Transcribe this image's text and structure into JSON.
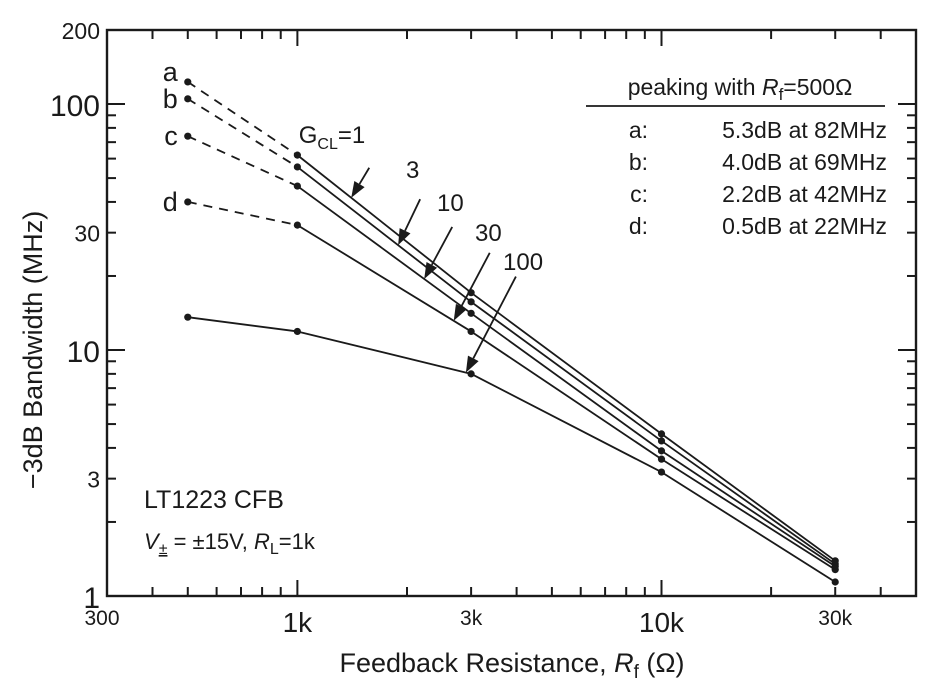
{
  "chart_data": {
    "type": "line",
    "title": "",
    "xlabel": "Feedback Resistance, R_f (Ω)",
    "xlabel_parts": {
      "main": "Feedback Resistance, ",
      "var": "R",
      "sub": "f",
      "unit": " (Ω)"
    },
    "ylabel": "−3dB Bandwidth (MHz)",
    "xscale": "log",
    "yscale": "log",
    "xlim": [
      300,
      50000
    ],
    "ylim": [
      1,
      200
    ],
    "x_ticks": [
      {
        "value": 300,
        "label": "300",
        "size": "small"
      },
      {
        "value": 1000,
        "label": "1k",
        "size": "large"
      },
      {
        "value": 3000,
        "label": "3k",
        "size": "small"
      },
      {
        "value": 10000,
        "label": "10k",
        "size": "large"
      },
      {
        "value": 30000,
        "label": "30k",
        "size": "small"
      }
    ],
    "y_ticks": [
      {
        "value": 1,
        "label": "1",
        "size": "large"
      },
      {
        "value": 3,
        "label": "3",
        "size": "small"
      },
      {
        "value": 10,
        "label": "10",
        "size": "large"
      },
      {
        "value": 30,
        "label": "30",
        "size": "small"
      },
      {
        "value": 100,
        "label": "100",
        "size": "large"
      },
      {
        "value": 200,
        "label": "200",
        "size": "small"
      }
    ],
    "grid": false,
    "series": [
      {
        "name": "G_CL=1",
        "peak_label": "a",
        "x": [
          500,
          1000,
          3000,
          10000,
          30000
        ],
        "values": [
          123,
          62,
          17.1,
          4.56,
          1.39
        ],
        "dashed_segments": [
          0
        ]
      },
      {
        "name": "G_CL=3",
        "peak_label": "b",
        "x": [
          500,
          1000,
          3000,
          10000,
          30000
        ],
        "values": [
          105,
          55.5,
          15.7,
          4.27,
          1.35
        ],
        "dashed_segments": [
          0
        ]
      },
      {
        "name": "G_CL=10",
        "peak_label": "c",
        "x": [
          500,
          1000,
          3000,
          10000,
          30000
        ],
        "values": [
          74,
          46.4,
          14.1,
          3.89,
          1.32
        ],
        "dashed_segments": [
          0
        ]
      },
      {
        "name": "G_CL=30",
        "peak_label": "d",
        "x": [
          500,
          1000,
          3000,
          10000,
          30000
        ],
        "values": [
          40,
          32.2,
          11.9,
          3.6,
          1.28
        ],
        "dashed_segments": [
          0
        ]
      },
      {
        "name": "G_CL=100",
        "peak_label": "",
        "x": [
          500,
          1000,
          3000,
          10000,
          30000
        ],
        "values": [
          13.6,
          11.9,
          8.0,
          3.19,
          1.14
        ],
        "dashed_segments": []
      }
    ],
    "gain_labels": [
      {
        "text": "G",
        "sub": "CL",
        "suffix": "=1",
        "series": 0
      },
      {
        "text": "3",
        "series": 1
      },
      {
        "text": "10",
        "series": 2
      },
      {
        "text": "30",
        "series": 3
      },
      {
        "text": "100",
        "series": 4
      }
    ],
    "peak_markers": [
      "a",
      "b",
      "c",
      "d"
    ],
    "legend": {
      "title_prefix": "peaking with ",
      "title_var": "R",
      "title_sub": "f",
      "title_suffix": "=500Ω",
      "placement": "top-right",
      "entries": [
        {
          "key": "a:",
          "text": "5.3dB at 82MHz"
        },
        {
          "key": "b:",
          "text": "4.0dB at 69MHz"
        },
        {
          "key": "c:",
          "text": "2.2dB at 42MHz"
        },
        {
          "key": "d:",
          "text": "0.5dB at 22MHz"
        }
      ]
    },
    "annotations": {
      "device": "LT1223 CFB",
      "conditions_v": "V",
      "conditions_v_sub": "±",
      "conditions_rest": " = ±15V, ",
      "conditions_r": "R",
      "conditions_r_sub": "L",
      "conditions_r_val": "=1k"
    }
  }
}
